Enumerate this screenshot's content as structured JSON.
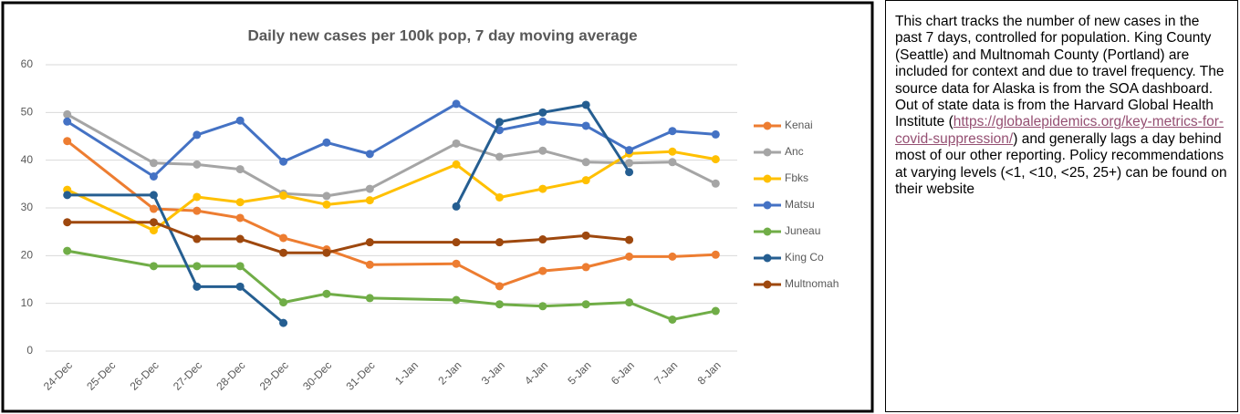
{
  "chart_data": {
    "type": "line",
    "title": "Daily new cases per 100k pop, 7 day moving average",
    "categories": [
      "24-Dec",
      "25-Dec",
      "26-Dec",
      "27-Dec",
      "28-Dec",
      "29-Dec",
      "30-Dec",
      "31-Dec",
      "1-Jan",
      "2-Jan",
      "3-Jan",
      "4-Jan",
      "5-Jan",
      "6-Jan",
      "7-Jan",
      "8-Jan"
    ],
    "ylim": [
      0,
      60
    ],
    "yticks": [
      0,
      10,
      20,
      30,
      40,
      50,
      60
    ],
    "grid": true,
    "legend": "right",
    "series": [
      {
        "name": "Kenai",
        "color": "#ed7d31",
        "values": [
          44,
          null,
          29.8,
          29.4,
          27.9,
          23.7,
          21.3,
          18.1,
          null,
          18.3,
          13.6,
          16.8,
          17.6,
          19.8,
          19.8,
          20.2
        ]
      },
      {
        "name": "Anc",
        "color": "#a5a5a5",
        "values": [
          49.6,
          null,
          39.4,
          39.1,
          38.1,
          33,
          32.5,
          34,
          null,
          43.5,
          40.7,
          42,
          39.6,
          39.4,
          39.6,
          35.1
        ]
      },
      {
        "name": "Fbks",
        "color": "#ffc000",
        "values": [
          33.8,
          null,
          25.3,
          32.3,
          31.2,
          32.6,
          30.7,
          31.6,
          null,
          39.1,
          32.2,
          34,
          35.8,
          41.4,
          41.8,
          40.2
        ]
      },
      {
        "name": "Matsu",
        "color": "#4472c4",
        "values": [
          48.1,
          null,
          36.6,
          45.3,
          48.3,
          39.7,
          43.7,
          41.3,
          null,
          51.8,
          46.3,
          48.1,
          47.2,
          42.1,
          46.1,
          45.4
        ]
      },
      {
        "name": "Juneau",
        "color": "#70ad47",
        "values": [
          21,
          null,
          17.8,
          17.8,
          17.8,
          10.2,
          12,
          11.1,
          null,
          10.7,
          9.8,
          9.4,
          9.8,
          10.2,
          6.6,
          8.4
        ]
      },
      {
        "name": "King Co",
        "color": "#255e91",
        "values": [
          32.7,
          null,
          32.7,
          13.5,
          13.5,
          5.9,
          null,
          null,
          null,
          30.3,
          48,
          50,
          51.6,
          37.5,
          null,
          null
        ]
      },
      {
        "name": "Multnomah",
        "color": "#9e480e",
        "values": [
          27,
          null,
          27,
          23.5,
          23.5,
          20.6,
          20.6,
          22.8,
          null,
          22.8,
          22.8,
          23.4,
          24.2,
          23.3,
          null,
          null
        ]
      }
    ]
  },
  "note": {
    "text_before": "This chart tracks the number of new cases in the past 7 days, controlled for population.  King County (Seattle) and Multnomah County (Portland) are included for context and due to travel frequency.  The source data for Alaska is from the SOA dashboard.  Out of state data is from the Harvard Global Health Institute (",
    "link": "https://globalepidemics.org/key-metrics-for-covid-suppression/",
    "text_after": ") and generally lags a day behind most of our other reporting.  Policy recommendations at varying levels (<1, <10, <25, 25+) can be found on their website"
  }
}
